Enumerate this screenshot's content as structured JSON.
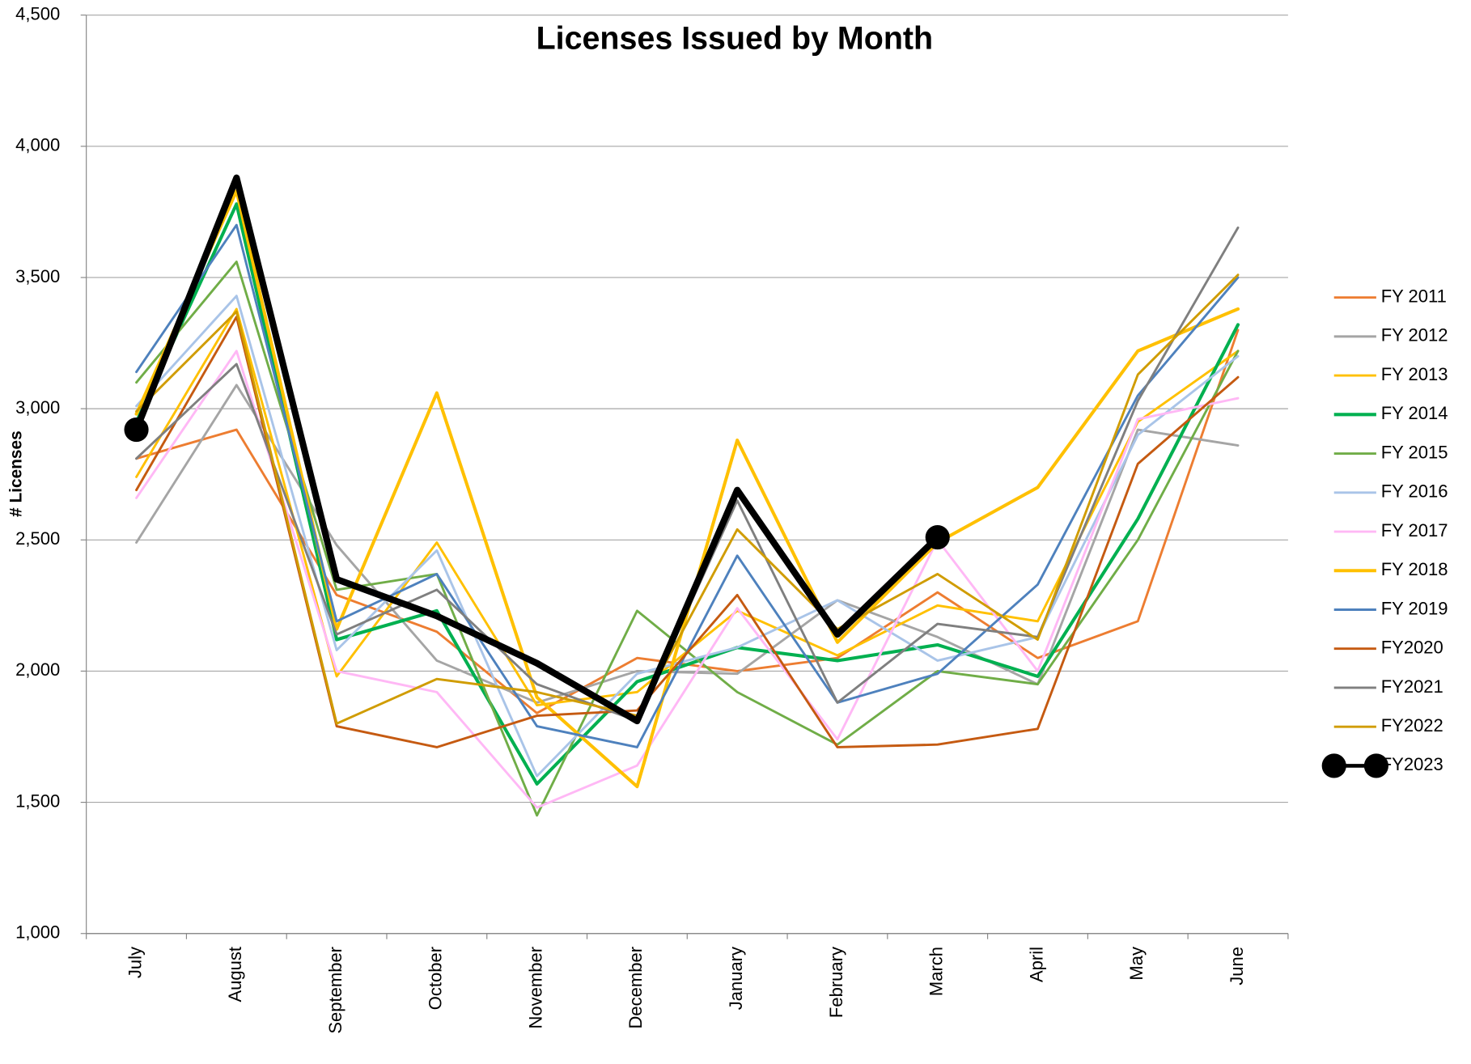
{
  "chart_data": {
    "type": "line",
    "title": "Licenses Issued by Month",
    "y_label": "# Licenses",
    "categories": [
      "July",
      "August",
      "September",
      "October",
      "November",
      "December",
      "January",
      "February",
      "March",
      "April",
      "May",
      "June"
    ],
    "ylim": [
      1000,
      4500
    ],
    "yticks": [
      {
        "value": 1000,
        "label": "1,000"
      },
      {
        "value": 1500,
        "label": "1,500"
      },
      {
        "value": 2000,
        "label": "2,000"
      },
      {
        "value": 2500,
        "label": "2,500"
      },
      {
        "value": 3000,
        "label": "3,000"
      },
      {
        "value": 3500,
        "label": "3,500"
      },
      {
        "value": 4000,
        "label": "4,000"
      },
      {
        "value": 4500,
        "label": "4,500"
      }
    ],
    "grid": true,
    "legend": "right",
    "series": [
      {
        "name": "FY 2011",
        "color": "#ED7D31",
        "values": [
          2810,
          2920,
          2290,
          2150,
          1840,
          2050,
          2000,
          2050,
          2300,
          2050,
          2190,
          3300
        ]
      },
      {
        "name": "FY 2012",
        "color": "#A5A5A5",
        "values": [
          2490,
          3090,
          2480,
          2040,
          1880,
          2000,
          1990,
          2270,
          2130,
          1950,
          2920,
          2860
        ]
      },
      {
        "name": "FY 2013",
        "color": "#FFC000",
        "values": [
          2740,
          3380,
          1980,
          2490,
          1870,
          1920,
          2230,
          2060,
          2250,
          2190,
          2950,
          3220
        ]
      },
      {
        "name": "FY 2014",
        "color": "#00B050",
        "values": [
          2950,
          3780,
          2120,
          2230,
          1570,
          1960,
          2090,
          2040,
          2100,
          1980,
          2580,
          3320
        ]
      },
      {
        "name": "FY 2015",
        "color": "#70AD47",
        "values": [
          3100,
          3560,
          2310,
          2370,
          1450,
          2230,
          1920,
          1720,
          2000,
          1950,
          2500,
          3220
        ]
      },
      {
        "name": "FY 2016",
        "color": "#A9C4E8",
        "values": [
          3010,
          3430,
          2080,
          2460,
          1600,
          1990,
          2090,
          2270,
          2040,
          2130,
          2900,
          3200
        ]
      },
      {
        "name": "FY 2017",
        "color": "#FFB8F5",
        "values": [
          2660,
          3220,
          2000,
          1920,
          1480,
          1640,
          2240,
          1740,
          2500,
          2000,
          2960,
          3040
        ]
      },
      {
        "name": "FY 2018",
        "color": "#FFC000",
        "values": [
          2980,
          3830,
          2160,
          3060,
          1900,
          1560,
          2880,
          2110,
          2490,
          2700,
          3220,
          3380
        ]
      },
      {
        "name": "FY 2019",
        "color": "#4E81BD",
        "values": [
          3140,
          3700,
          2190,
          2370,
          1790,
          1710,
          2440,
          1880,
          1990,
          2330,
          3050,
          3500
        ]
      },
      {
        "name": "FY2020",
        "color": "#C55A11",
        "values": [
          2690,
          3350,
          1790,
          1710,
          1830,
          1850,
          2290,
          1710,
          1720,
          1780,
          2790,
          3120
        ]
      },
      {
        "name": "FY2021",
        "color": "#7F7F7F",
        "values": [
          2810,
          3170,
          2140,
          2310,
          1950,
          1810,
          2650,
          1880,
          2180,
          2130,
          3030,
          3690
        ]
      },
      {
        "name": "FY2022",
        "color": "#D09C00",
        "values": [
          2990,
          3370,
          1800,
          1970,
          1920,
          1830,
          2540,
          2160,
          2370,
          2120,
          3130,
          3510
        ]
      },
      {
        "name": "FY2023",
        "color": "#000000",
        "markers": true,
        "values": [
          2920,
          3880,
          2350,
          2210,
          2030,
          1810,
          2690,
          2140,
          2510,
          null,
          null,
          null
        ]
      }
    ]
  }
}
